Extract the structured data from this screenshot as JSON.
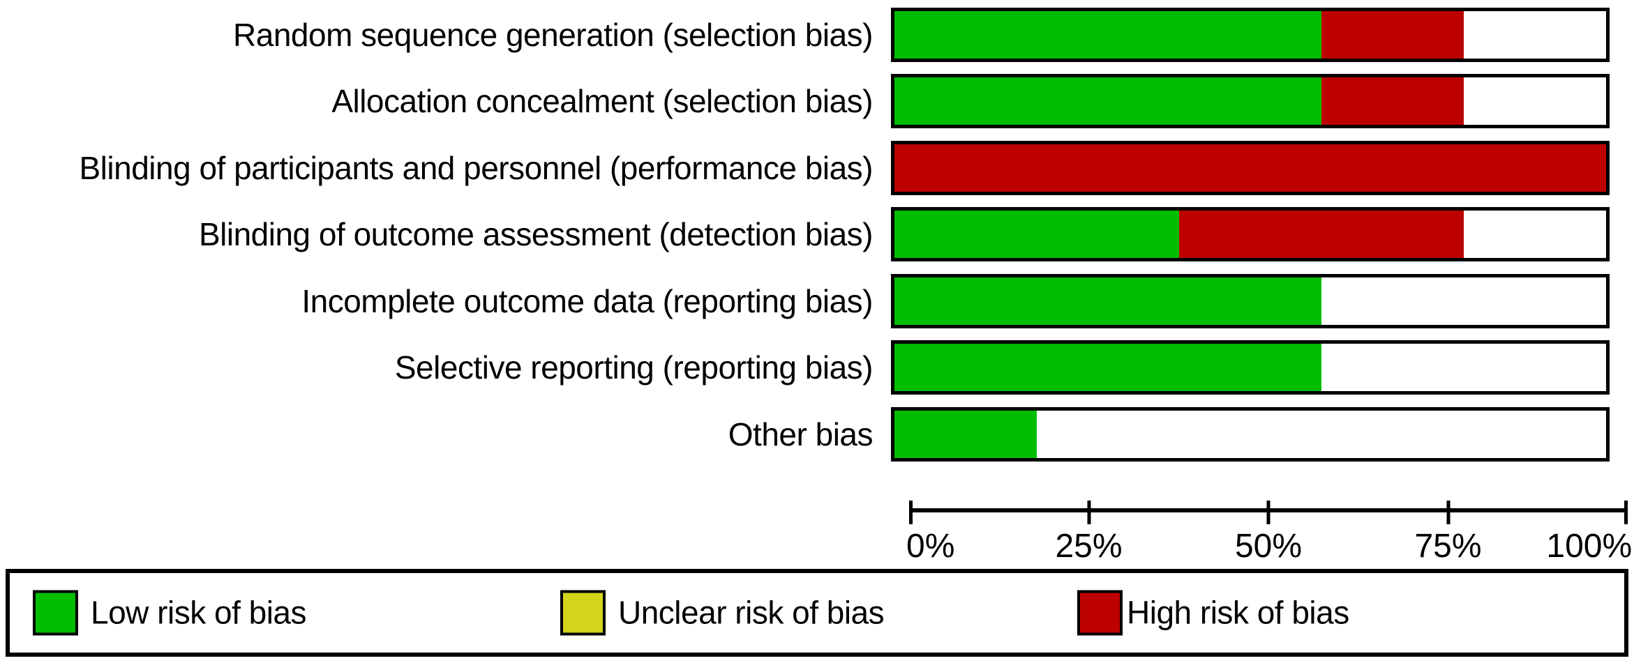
{
  "chart_data": {
    "type": "bar",
    "orientation": "horizontal-stacked",
    "title": "",
    "xlabel": "",
    "ylabel": "",
    "xlim": [
      0,
      100
    ],
    "grid": false,
    "legend_position": "bottom",
    "x_ticks": [
      "0%",
      "25%",
      "50%",
      "75%",
      "100%"
    ],
    "categories": [
      "Random sequence generation (selection bias)",
      "Allocation concealment (selection bias)",
      "Blinding of participants and personnel (performance bias)",
      "Blinding of outcome assessment (detection bias)",
      "Incomplete outcome data (reporting bias)",
      "Selective reporting (reporting bias)",
      "Other bias"
    ],
    "series": [
      {
        "name": "Low risk of bias",
        "color": "#00bd00",
        "values": [
          60,
          60,
          0,
          40,
          60,
          60,
          20
        ]
      },
      {
        "name": "Unclear risk of bias",
        "color": "#d4d41d",
        "values": [
          0,
          0,
          0,
          0,
          0,
          0,
          0
        ]
      },
      {
        "name": "High risk of bias",
        "color": "#bd0000",
        "values": [
          20,
          20,
          100,
          40,
          0,
          0,
          0
        ]
      }
    ]
  },
  "colors": {
    "bar_border": "#000000",
    "axis": "#000000",
    "background": "#ffffff"
  }
}
